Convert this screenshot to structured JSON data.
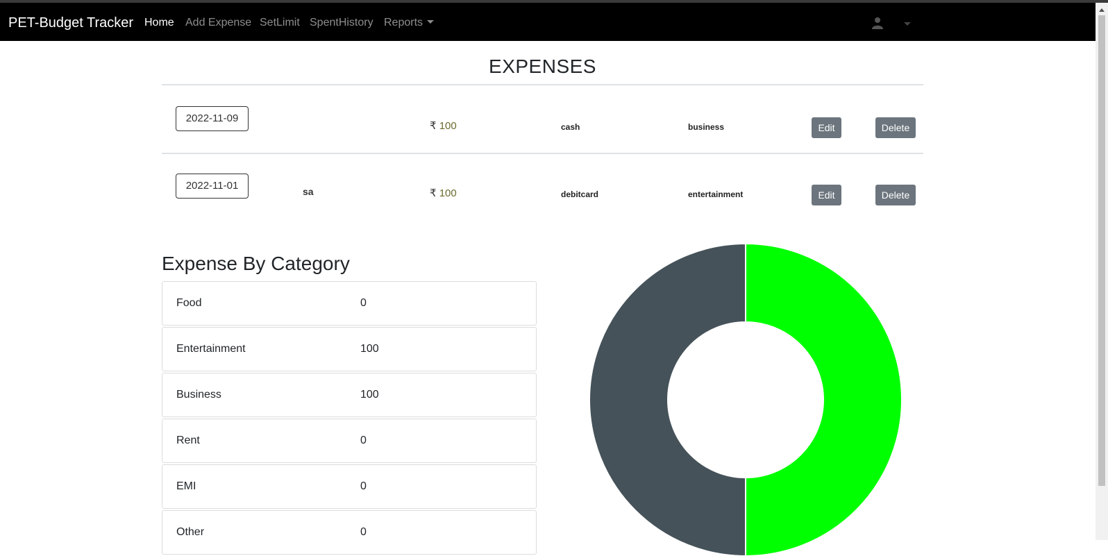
{
  "navbar": {
    "brand": "PET-Budget Tracker",
    "links": [
      {
        "label": "Home",
        "active": true
      },
      {
        "label": "Add Expense",
        "active": false
      },
      {
        "label": "SetLimit",
        "active": false
      },
      {
        "label": "SpentHistory",
        "active": false
      },
      {
        "label": "Reports",
        "active": false,
        "dropdown": true
      }
    ],
    "user_icon": "user-icon"
  },
  "page_title": "EXPENSES",
  "expenses": [
    {
      "date": "2022-11-09",
      "description": "",
      "currency": "₹",
      "amount": "100",
      "method": "cash",
      "category": "business",
      "edit_label": "Edit",
      "delete_label": "Delete"
    },
    {
      "date": "2022-11-01",
      "description": "sa",
      "currency": "₹",
      "amount": "100",
      "method": "debitcard",
      "category": "entertainment",
      "edit_label": "Edit",
      "delete_label": "Delete"
    }
  ],
  "category_section": {
    "title": "Expense By Category",
    "items": [
      {
        "label": "Food",
        "value": "0"
      },
      {
        "label": "Entertainment",
        "value": "100"
      },
      {
        "label": "Business",
        "value": "100"
      },
      {
        "label": "Rent",
        "value": "0"
      },
      {
        "label": "EMI",
        "value": "0"
      },
      {
        "label": "Other",
        "value": "0"
      }
    ]
  },
  "chart_data": {
    "type": "pie",
    "donut": true,
    "categories": [
      "Food",
      "Entertainment",
      "Business",
      "Rent",
      "EMI",
      "Other"
    ],
    "values": [
      0,
      100,
      100,
      0,
      0,
      0
    ],
    "colors": [
      "#ff6384",
      "#00ff00",
      "#455259",
      "#ffcd56",
      "#4bc0c0",
      "#9966ff"
    ]
  },
  "colors": {
    "navbar_bg": "#000000",
    "button_bg": "#6c757d",
    "amount_text": "#6b6b2f"
  }
}
